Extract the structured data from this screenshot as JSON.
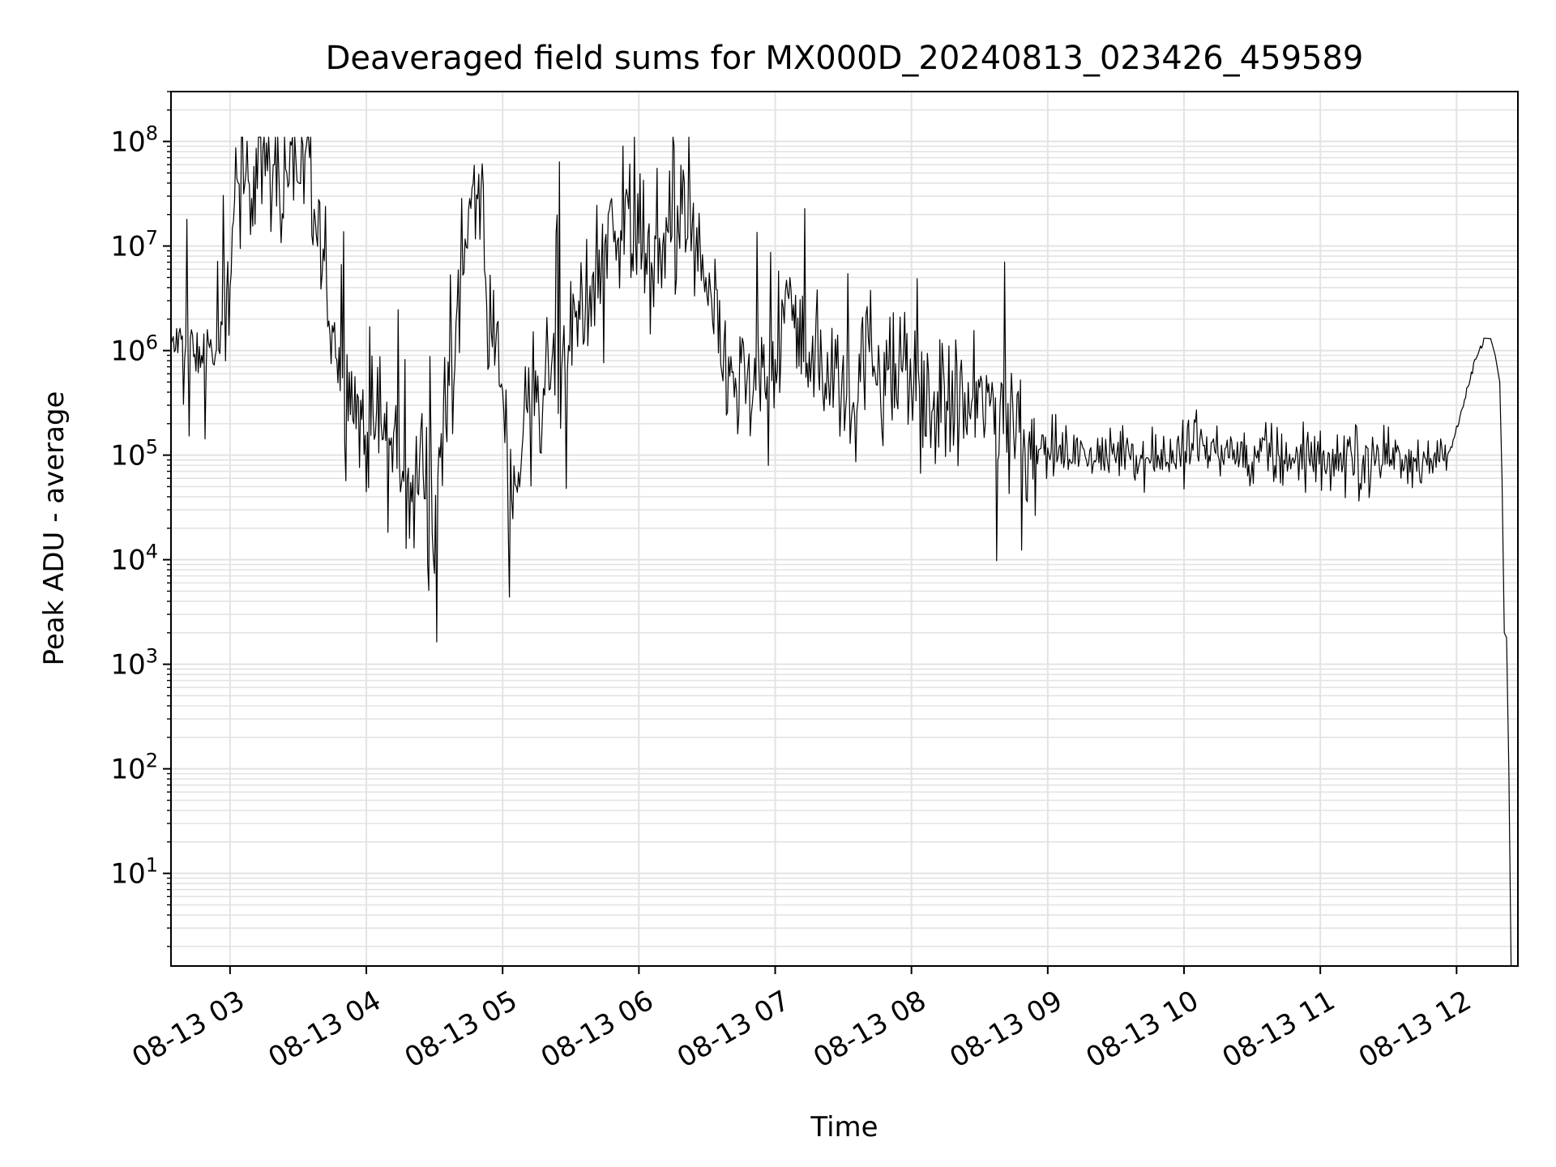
{
  "chart_data": {
    "type": "line",
    "title": "Deaveraged field sums for MX000D_20240813_023426_459589",
    "xlabel": "Time",
    "ylabel": "Peak ADU - average",
    "yscale": "log",
    "xlim": [
      "08-13 02:34",
      "08-13 12:27"
    ],
    "ylim": [
      1.3,
      300000000.0
    ],
    "grid": true,
    "x_ticks": [
      "08-13 03",
      "08-13 04",
      "08-13 05",
      "08-13 06",
      "08-13 07",
      "08-13 08",
      "08-13 09",
      "08-13 10",
      "08-13 11",
      "08-13 12"
    ],
    "y_ticks": [
      {
        "base": "10",
        "exp": "1"
      },
      {
        "base": "10",
        "exp": "2"
      },
      {
        "base": "10",
        "exp": "3"
      },
      {
        "base": "10",
        "exp": "4"
      },
      {
        "base": "10",
        "exp": "5"
      },
      {
        "base": "10",
        "exp": "6"
      },
      {
        "base": "10",
        "exp": "7"
      },
      {
        "base": "10",
        "exp": "8"
      }
    ],
    "line_color": "#000000",
    "series": [
      {
        "x": [
          "08-13 02:34",
          "08-13 02:40",
          "08-13 02:46",
          "08-13 02:50",
          "08-13 02:55",
          "08-13 03:00",
          "08-13 03:05",
          "08-13 03:10",
          "08-13 03:15",
          "08-13 03:20",
          "08-13 03:25",
          "08-13 03:30",
          "08-13 03:35",
          "08-13 03:40",
          "08-13 03:45",
          "08-13 03:50",
          "08-13 03:55",
          "08-13 04:00",
          "08-13 04:05",
          "08-13 04:10",
          "08-13 04:15",
          "08-13 04:20",
          "08-13 04:25",
          "08-13 04:30",
          "08-13 04:35",
          "08-13 04:40",
          "08-13 04:45",
          "08-13 04:50",
          "08-13 04:55",
          "08-13 05:00",
          "08-13 05:03",
          "08-13 05:07",
          "08-13 05:12",
          "08-13 05:18",
          "08-13 05:25",
          "08-13 05:32",
          "08-13 05:40",
          "08-13 05:47",
          "08-13 05:55",
          "08-13 06:00",
          "08-13 06:07",
          "08-13 06:15",
          "08-13 06:22",
          "08-13 06:30",
          "08-13 06:37",
          "08-13 06:45",
          "08-13 06:52",
          "08-13 07:00",
          "08-13 07:05",
          "08-13 07:12",
          "08-13 07:20",
          "08-13 07:27",
          "08-13 07:35",
          "08-13 07:42",
          "08-13 07:50",
          "08-13 07:57",
          "08-13 08:05",
          "08-13 08:12",
          "08-13 08:20",
          "08-13 08:27",
          "08-13 08:35",
          "08-13 08:42",
          "08-13 08:50",
          "08-13 08:57",
          "08-13 09:05",
          "08-13 09:15",
          "08-13 09:25",
          "08-13 09:35",
          "08-13 09:45",
          "08-13 09:55",
          "08-13 10:05",
          "08-13 10:15",
          "08-13 10:25",
          "08-13 10:35",
          "08-13 10:45",
          "08-13 10:55",
          "08-13 11:05",
          "08-13 11:15",
          "08-13 11:25",
          "08-13 11:35",
          "08-13 11:45",
          "08-13 11:55",
          "08-13 11:58",
          "08-13 12:03",
          "08-13 12:08",
          "08-13 12:12",
          "08-13 12:15",
          "08-13 12:17",
          "08-13 12:19",
          "08-13 12:20",
          "08-13 12:21",
          "08-13 12:22",
          "08-13 12:23",
          "08-13 12:24"
        ],
        "y": [
          1100000.0,
          1200000.0,
          900000.0,
          1100000.0,
          800000.0,
          8000000.0,
          40000000.0,
          60000000.0,
          80000000.0,
          50000000.0,
          90000000.0,
          70000000.0,
          30000000.0,
          8000000.0,
          2000000.0,
          500000.0,
          300000.0,
          200000.0,
          200000.0,
          150000.0,
          80000.0,
          30000.0,
          120000.0,
          20000.0,
          400000.0,
          1500000.0,
          30000000.0,
          30000000.0,
          1000000.0,
          500000.0,
          40000.0,
          80000.0,
          400000.0,
          500000.0,
          800000.0,
          2000000.0,
          6000000.0,
          15000000.0,
          20000000.0,
          12000000.0,
          8000000.0,
          12000000.0,
          20000000.0,
          3000000.0,
          800000.0,
          400000.0,
          500000.0,
          700000.0,
          3000000.0,
          1000000.0,
          800000.0,
          500000.0,
          400000.0,
          1000000.0,
          500000.0,
          600000.0,
          400000.0,
          300000.0,
          300000.0,
          250000.0,
          350000.0,
          250000.0,
          150000.0,
          120000.0,
          110000.0,
          100000.0,
          90000.0,
          120000.0,
          100000.0,
          100000.0,
          130000.0,
          110000.0,
          90000.0,
          100000.0,
          90000.0,
          100000.0,
          90000.0,
          90000.0,
          100000.0,
          100000.0,
          90000.0,
          100000.0,
          120000.0,
          300000.0,
          800000.0,
          1200000.0,
          1300000.0,
          900000.0,
          500000.0,
          60000.0,
          2000.0,
          1800.0,
          100.0,
          1.3
        ]
      }
    ]
  }
}
